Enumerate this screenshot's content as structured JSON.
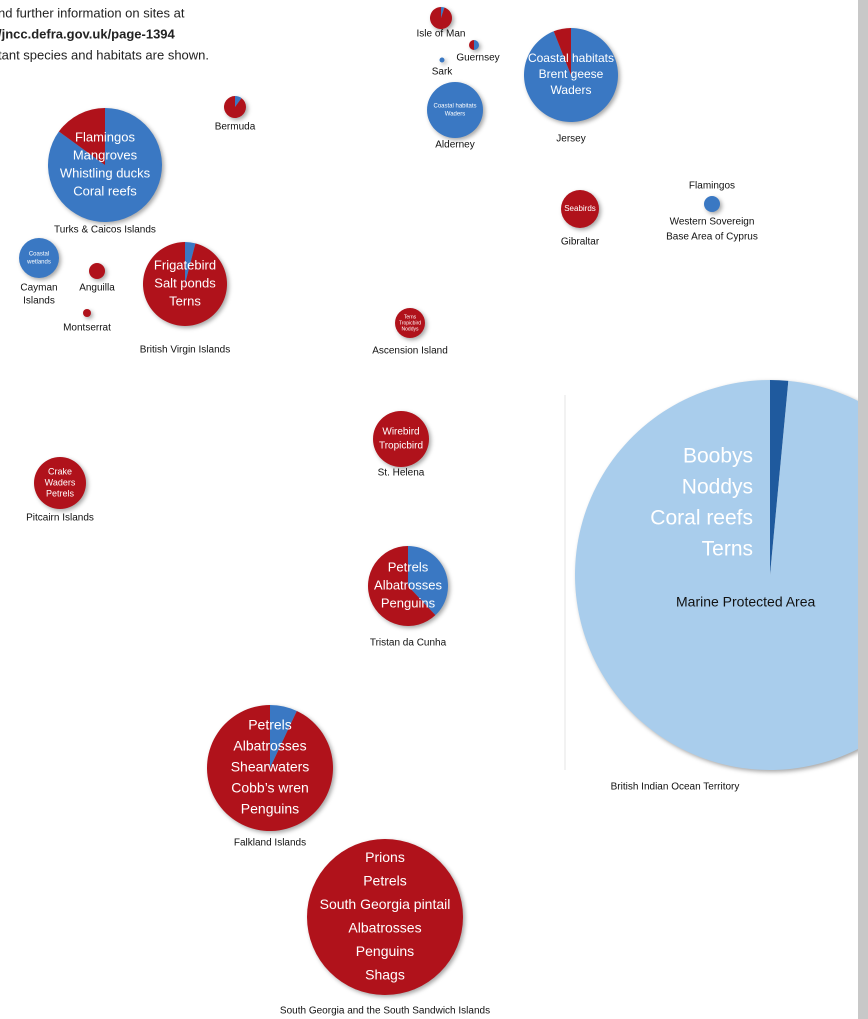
{
  "intro": {
    "lines": [
      "nd further information on sites at",
      "/jncc.defra.gov.uk/page-1394",
      "tant species and habitats are shown."
    ]
  },
  "territories": [
    {
      "name_lines": [
        "Isle of Man"
      ],
      "labels": [],
      "slices": [
        {
          "value": 5,
          "color": "#3a78c3"
        },
        {
          "value": 95,
          "color": "#b0121b"
        }
      ]
    },
    {
      "name_lines": [
        "Guernsey"
      ],
      "labels": [],
      "slices": [
        {
          "value": 50,
          "color": "#3a78c3"
        },
        {
          "value": 50,
          "color": "#b0121b"
        }
      ]
    },
    {
      "name_lines": [
        "Sark"
      ],
      "labels": [],
      "slices": [
        {
          "value": 100,
          "color": "#3a78c3"
        }
      ]
    },
    {
      "name_lines": [
        "Alderney"
      ],
      "labels": [
        "Coastal habitats",
        "Waders"
      ],
      "slices": [
        {
          "value": 100,
          "color": "#3a78c3"
        }
      ]
    },
    {
      "name_lines": [
        "Jersey"
      ],
      "labels": [
        "Coastal habitats",
        "Brent geese",
        "Waders"
      ],
      "slices": [
        {
          "value": 94,
          "color": "#3a78c3"
        },
        {
          "value": 6,
          "color": "#b0121b"
        }
      ]
    },
    {
      "name_lines": [
        "Bermuda"
      ],
      "labels": [],
      "slices": [
        {
          "value": 10,
          "color": "#3a78c3"
        },
        {
          "value": 90,
          "color": "#b0121b"
        }
      ]
    },
    {
      "name_lines": [
        "Turks & Caicos Islands"
      ],
      "labels": [
        "Flamingos",
        "Mangroves",
        "Whistling ducks",
        "Coral reefs"
      ],
      "slices": [
        {
          "value": 85,
          "color": "#3a78c3"
        },
        {
          "value": 15,
          "color": "#b0121b"
        }
      ]
    },
    {
      "name_lines": [
        "Gibraltar"
      ],
      "labels": [
        "Seabirds"
      ],
      "slices": [
        {
          "value": 100,
          "color": "#b0121b"
        }
      ]
    },
    {
      "name_lines": [
        "Western Sovereign",
        "Base Area of Cyprus"
      ],
      "labels": [
        "Flamingos"
      ],
      "slices": [
        {
          "value": 100,
          "color": "#3a78c3"
        }
      ]
    },
    {
      "name_lines": [
        "Cayman",
        "Islands"
      ],
      "labels": [
        "Coastal",
        "wetlands"
      ],
      "slices": [
        {
          "value": 100,
          "color": "#3a78c3"
        }
      ]
    },
    {
      "name_lines": [
        "Anguilla"
      ],
      "labels": [],
      "slices": [
        {
          "value": 100,
          "color": "#b0121b"
        }
      ]
    },
    {
      "name_lines": [
        "Montserrat"
      ],
      "labels": [],
      "slices": [
        {
          "value": 100,
          "color": "#b0121b"
        }
      ]
    },
    {
      "name_lines": [
        "British Virgin Islands"
      ],
      "labels": [
        "Frigatebird",
        "Salt ponds",
        "Terns"
      ],
      "slices": [
        {
          "value": 4,
          "color": "#3a78c3"
        },
        {
          "value": 96,
          "color": "#b0121b"
        }
      ]
    },
    {
      "name_lines": [
        "Ascension Island"
      ],
      "labels": [
        "Terns",
        "Tropicbird",
        "Noddys"
      ],
      "slices": [
        {
          "value": 100,
          "color": "#b0121b"
        }
      ]
    },
    {
      "name_lines": [
        "St. Helena"
      ],
      "labels": [
        "Wirebird",
        "Tropicbird"
      ],
      "slices": [
        {
          "value": 100,
          "color": "#b0121b"
        }
      ]
    },
    {
      "name_lines": [
        "Pitcairn Islands"
      ],
      "labels": [
        "Crake",
        "Waders",
        "Petrels"
      ],
      "slices": [
        {
          "value": 100,
          "color": "#b0121b"
        }
      ]
    },
    {
      "name_lines": [
        "Tristan da Cunha"
      ],
      "labels": [
        "Petrels",
        "Albatrosses",
        "Penguins"
      ],
      "slices": [
        {
          "value": 38,
          "color": "#3a78c3"
        },
        {
          "value": 62,
          "color": "#b0121b"
        }
      ]
    },
    {
      "name_lines": [
        "British Indian Ocean Territory"
      ],
      "labels": [
        "Boobys",
        "Noddys",
        "Coral reefs",
        "Terns"
      ],
      "note": "Marine Protected Area",
      "slices": [
        {
          "value": 1.5,
          "color": "#1f5a9e"
        },
        {
          "value": 98.5,
          "color": "#a9cdec"
        }
      ]
    },
    {
      "name_lines": [
        "Falkland Islands"
      ],
      "labels": [
        "Petrels",
        "Albatrosses",
        "Shearwaters",
        "Cobb’s wren",
        "Penguins"
      ],
      "slices": [
        {
          "value": 7,
          "color": "#3a78c3"
        },
        {
          "value": 93,
          "color": "#b0121b"
        }
      ]
    },
    {
      "name_lines": [
        "South Georgia and the South Sandwich Islands"
      ],
      "labels": [
        "Prions",
        "Petrels",
        "South Georgia pintail",
        "Albatrosses",
        "Penguins",
        "Shags"
      ],
      "slices": [
        {
          "value": 100,
          "color": "#b0121b"
        }
      ]
    }
  ]
}
